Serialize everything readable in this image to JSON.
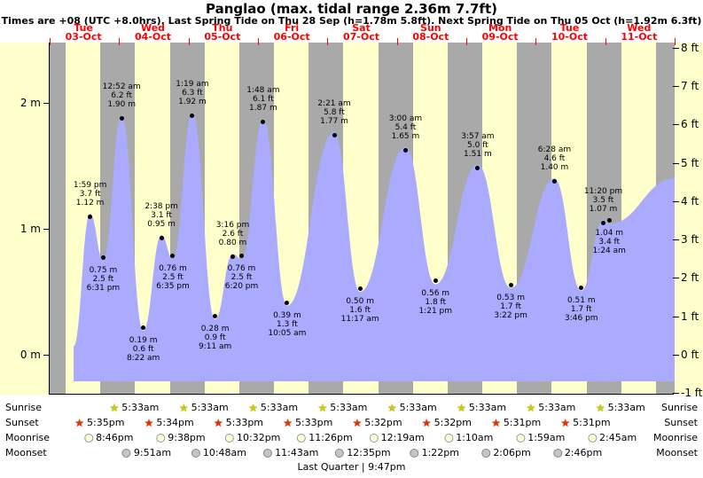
{
  "header": {
    "title": "Panglao (max. tidal range 2.36m 7.7ft)",
    "subtitle": "Times are +08 (UTC +8.0hrs). Last Spring Tide on Thu 28 Sep (h=1.78m 5.8ft). Next Spring Tide on Thu 05 Oct (h=1.92m 6.3ft)"
  },
  "colors": {
    "day_band": "#ffffcc",
    "night_band": "#a9a9a9",
    "tide_fill": "#aaaaff",
    "day_label_red": "#ff0000"
  },
  "chart_data": {
    "type": "area",
    "title": "Tide height curve for Panglao, 03-Oct to 11-Oct",
    "x_axis": {
      "days": [
        {
          "name": "Tue",
          "date": "03-Oct"
        },
        {
          "name": "Wed",
          "date": "04-Oct"
        },
        {
          "name": "Thu",
          "date": "05-Oct"
        },
        {
          "name": "Fri",
          "date": "06-Oct"
        },
        {
          "name": "Sat",
          "date": "07-Oct"
        },
        {
          "name": "Sun",
          "date": "08-Oct"
        },
        {
          "name": "Mon",
          "date": "09-Oct"
        },
        {
          "name": "Tue",
          "date": "10-Oct"
        },
        {
          "name": "Wed",
          "date": "11-Oct"
        }
      ]
    },
    "y_axis_left": {
      "unit": "m",
      "ticks": [
        {
          "value": 0,
          "label": "0 m"
        },
        {
          "value": 1,
          "label": "1 m"
        },
        {
          "value": 2,
          "label": "2 m"
        }
      ]
    },
    "y_axis_right": {
      "unit": "ft",
      "ticks": [
        {
          "value": -1,
          "label": "-1 ft"
        },
        {
          "value": 0,
          "label": "0 ft"
        },
        {
          "value": 1,
          "label": "1 ft"
        },
        {
          "value": 2,
          "label": "2 ft"
        },
        {
          "value": 3,
          "label": "3 ft"
        },
        {
          "value": 4,
          "label": "4 ft"
        },
        {
          "value": 5,
          "label": "5 ft"
        },
        {
          "value": 6,
          "label": "6 ft"
        },
        {
          "value": 7,
          "label": "7 ft"
        },
        {
          "value": 8,
          "label": "8 ft"
        }
      ]
    },
    "events": [
      {
        "kind": "high",
        "day": 0,
        "time": "1:59 pm",
        "ft": "3.7 ft",
        "m": "1.12 m"
      },
      {
        "kind": "low",
        "day": 0,
        "time": "6:31 pm",
        "ft": "2.5 ft",
        "m": "0.75 m"
      },
      {
        "kind": "high",
        "day": 1,
        "time": "12:52 am",
        "ft": "6.2 ft",
        "m": "1.90 m"
      },
      {
        "kind": "low",
        "day": 1,
        "time": "8:22 am",
        "ft": "0.6 ft",
        "m": "0.19 m"
      },
      {
        "kind": "high",
        "day": 1,
        "time": "2:38 pm",
        "ft": "3.1 ft",
        "m": "0.95 m"
      },
      {
        "kind": "low",
        "day": 1,
        "time": "6:35 pm",
        "ft": "2.5 ft",
        "m": "0.76 m"
      },
      {
        "kind": "high",
        "day": 2,
        "time": "1:19 am",
        "ft": "6.3 ft",
        "m": "1.92 m"
      },
      {
        "kind": "low",
        "day": 2,
        "time": "9:11 am",
        "ft": "0.9 ft",
        "m": "0.28 m"
      },
      {
        "kind": "high",
        "day": 2,
        "time": "3:16 pm",
        "ft": "2.6 ft",
        "m": "0.80 m"
      },
      {
        "kind": "low",
        "day": 2,
        "time": "6:20 pm",
        "ft": "2.5 ft",
        "m": "0.76 m"
      },
      {
        "kind": "high",
        "day": 3,
        "time": "1:48 am",
        "ft": "6.1 ft",
        "m": "1.87 m"
      },
      {
        "kind": "low",
        "day": 3,
        "time": "10:05 am",
        "ft": "1.3 ft",
        "m": "0.39 m"
      },
      {
        "kind": "high",
        "day": 4,
        "time": "2:21 am",
        "ft": "5.8 ft",
        "m": "1.77 m"
      },
      {
        "kind": "low",
        "day": 4,
        "time": "11:17 am",
        "ft": "1.6 ft",
        "m": "0.50 m"
      },
      {
        "kind": "high",
        "day": 5,
        "time": "3:00 am",
        "ft": "5.4 ft",
        "m": "1.65 m"
      },
      {
        "kind": "low",
        "day": 5,
        "time": "1:21 pm",
        "ft": "1.8 ft",
        "m": "0.56 m"
      },
      {
        "kind": "high",
        "day": 6,
        "time": "3:57 am",
        "ft": "5.0 ft",
        "m": "1.51 m"
      },
      {
        "kind": "low",
        "day": 6,
        "time": "3:22 pm",
        "ft": "1.7 ft",
        "m": "0.53 m"
      },
      {
        "kind": "high",
        "day": 7,
        "time": "6:28 am",
        "ft": "4.6 ft",
        "m": "1.40 m"
      },
      {
        "kind": "low",
        "day": 7,
        "time": "3:46 pm",
        "ft": "1.7 ft",
        "m": "0.51 m"
      },
      {
        "kind": "high",
        "day": 7,
        "time": "11:20 pm",
        "ft": "3.5 ft",
        "m": "1.07 m"
      },
      {
        "kind": "low",
        "day": 8,
        "time": "1:24 am",
        "ft": "3.4 ft",
        "m": "1.04 m"
      }
    ]
  },
  "astro": {
    "rows": [
      {
        "id": "sunrise",
        "label": "Sunrise",
        "icon": "sunrise-star-icon",
        "entries": [
          {
            "day": 1,
            "time": "5:33am"
          },
          {
            "day": 2,
            "time": "5:33am"
          },
          {
            "day": 3,
            "time": "5:33am"
          },
          {
            "day": 4,
            "time": "5:33am"
          },
          {
            "day": 5,
            "time": "5:33am"
          },
          {
            "day": 6,
            "time": "5:33am"
          },
          {
            "day": 7,
            "time": "5:33am"
          },
          {
            "day": 8,
            "time": "5:33am"
          }
        ]
      },
      {
        "id": "sunset",
        "label": "Sunset",
        "icon": "sunset-star-icon",
        "entries": [
          {
            "day": 0,
            "time": "5:35pm"
          },
          {
            "day": 1,
            "time": "5:34pm"
          },
          {
            "day": 2,
            "time": "5:33pm"
          },
          {
            "day": 3,
            "time": "5:33pm"
          },
          {
            "day": 4,
            "time": "5:32pm"
          },
          {
            "day": 5,
            "time": "5:32pm"
          },
          {
            "day": 6,
            "time": "5:31pm"
          },
          {
            "day": 7,
            "time": "5:31pm"
          }
        ]
      },
      {
        "id": "moonrise",
        "label": "Moonrise",
        "icon": "moonrise-circle-icon",
        "entries": [
          {
            "day": 0,
            "time": "8:46pm"
          },
          {
            "day": 1,
            "time": "9:38pm"
          },
          {
            "day": 2,
            "time": "10:32pm"
          },
          {
            "day": 3,
            "time": "11:26pm"
          },
          {
            "day": 5,
            "time": "12:19am"
          },
          {
            "day": 6,
            "time": "1:10am"
          },
          {
            "day": 7,
            "time": "1:59am"
          },
          {
            "day": 8,
            "time": "2:45am"
          }
        ]
      },
      {
        "id": "moonset",
        "label": "Moonset",
        "icon": "moonset-circle-icon",
        "entries": [
          {
            "day": 1,
            "time": "9:51am"
          },
          {
            "day": 2,
            "time": "10:48am"
          },
          {
            "day": 3,
            "time": "11:43am"
          },
          {
            "day": 4,
            "time": "12:35pm"
          },
          {
            "day": 5,
            "time": "1:22pm"
          },
          {
            "day": 6,
            "time": "2:06pm"
          },
          {
            "day": 7,
            "time": "2:46pm"
          }
        ]
      }
    ],
    "footer": "Last Quarter | 9:47pm"
  }
}
